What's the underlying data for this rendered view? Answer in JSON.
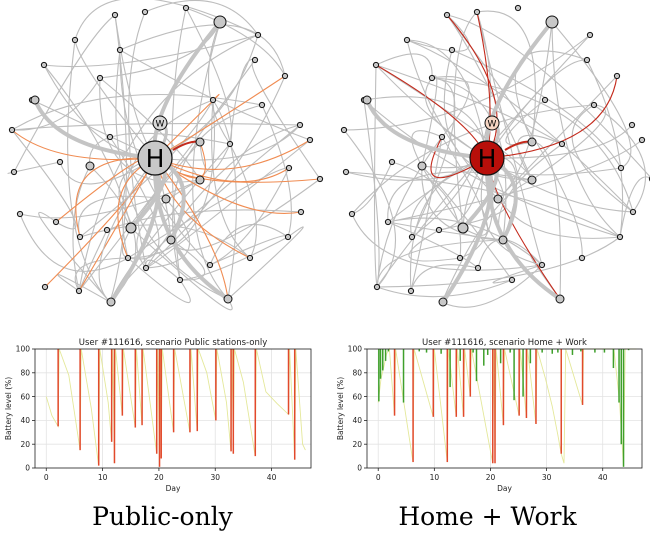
{
  "figure": {
    "left_caption": "Public-only",
    "right_caption": "Home + Work"
  },
  "networks": [
    {
      "name": "left-network",
      "home_label": "H",
      "work_label": "W",
      "home_fill": "#c8c8c8"
    },
    {
      "name": "right-network",
      "home_label": "H",
      "work_label": "W",
      "home_fill": "#b80f0a"
    }
  ],
  "colors": {
    "edge_gray": "#bdbdbd",
    "edge_orange": "#f08c52",
    "edge_red": "#c42a1c",
    "charge_red": "#e2492c",
    "charge_green": "#3fa02b",
    "soc_yellow": "#e4e89a",
    "node_fill": "#c8c8c8"
  },
  "chart_data": [
    {
      "type": "bar",
      "title": "User #111616, scenario Public stations-only",
      "xlabel": "Day",
      "ylabel": "Battery level (%)",
      "xlim": [
        -2,
        47
      ],
      "ylim": [
        0,
        100
      ],
      "xticks": [
        0,
        10,
        20,
        30,
        40
      ],
      "yticks": [
        0,
        20,
        40,
        60,
        80,
        100
      ],
      "grid": true,
      "series": [
        {
          "values": [
            [
              2.1,
              35
            ],
            [
              6,
              15
            ],
            [
              9.3,
              2
            ],
            [
              11.6,
              22
            ],
            [
              12.1,
              4
            ],
            [
              13.5,
              44
            ],
            [
              15.8,
              34
            ],
            [
              17,
              36
            ],
            [
              19.6,
              12
            ],
            [
              20.1,
              1
            ],
            [
              20.4,
              8
            ],
            [
              22.6,
              30
            ],
            [
              25.5,
              30
            ],
            [
              26.8,
              31
            ],
            [
              30.1,
              40
            ],
            [
              32.8,
              14
            ],
            [
              33.2,
              12
            ],
            [
              37.1,
              10
            ],
            [
              43,
              45
            ],
            [
              44.1,
              7
            ]
          ]
        }
      ],
      "soc_trace": [
        [
          0,
          60
        ],
        [
          1,
          44
        ],
        [
          2.1,
          35
        ],
        [
          2.3,
          100
        ],
        [
          4,
          78
        ],
        [
          6,
          15
        ],
        [
          6.2,
          100
        ],
        [
          8,
          50
        ],
        [
          9.3,
          2
        ],
        [
          9.5,
          100
        ],
        [
          11,
          55
        ],
        [
          11.6,
          22
        ],
        [
          11.8,
          100
        ],
        [
          12.1,
          4
        ],
        [
          12.3,
          100
        ],
        [
          13.5,
          44
        ],
        [
          13.7,
          100
        ],
        [
          15.8,
          34
        ],
        [
          16,
          100
        ],
        [
          17,
          36
        ],
        [
          17.2,
          100
        ],
        [
          19.6,
          12
        ],
        [
          19.8,
          100
        ],
        [
          20.1,
          1
        ],
        [
          20.2,
          100
        ],
        [
          20.4,
          8
        ],
        [
          20.6,
          100
        ],
        [
          22.6,
          30
        ],
        [
          22.8,
          100
        ],
        [
          25.5,
          30
        ],
        [
          25.7,
          100
        ],
        [
          26.8,
          31
        ],
        [
          27,
          100
        ],
        [
          28.5,
          80
        ],
        [
          30.1,
          40
        ],
        [
          30.3,
          100
        ],
        [
          32,
          55
        ],
        [
          32.8,
          14
        ],
        [
          33,
          100
        ],
        [
          33.2,
          12
        ],
        [
          33.4,
          100
        ],
        [
          35,
          72
        ],
        [
          37.1,
          10
        ],
        [
          37.3,
          100
        ],
        [
          39,
          64
        ],
        [
          41,
          54
        ],
        [
          43,
          45
        ],
        [
          43.2,
          100
        ],
        [
          44.1,
          7
        ],
        [
          44.3,
          100
        ],
        [
          45.5,
          20
        ],
        [
          46,
          15
        ]
      ]
    },
    {
      "type": "bar",
      "title": "User #111616, scenario Home + Work",
      "xlabel": "Day",
      "ylabel": "Battery level (%)",
      "xlim": [
        -2,
        47
      ],
      "ylim": [
        0,
        100
      ],
      "xticks": [
        0,
        10,
        20,
        30,
        40
      ],
      "yticks": [
        0,
        20,
        40,
        60,
        80,
        100
      ],
      "grid": true,
      "series": [
        {
          "values": [
            [
              2.9,
              44
            ],
            [
              6.2,
              5
            ],
            [
              9.8,
              43
            ],
            [
              12.3,
              5
            ],
            [
              13.9,
              43
            ],
            [
              15.2,
              43
            ],
            [
              16.4,
              60
            ],
            [
              20.4,
              4
            ],
            [
              20.8,
              4
            ],
            [
              22.3,
              36
            ],
            [
              25.1,
              44
            ],
            [
              26.4,
              42
            ],
            [
              28.1,
              37
            ],
            [
              32.6,
              12
            ],
            [
              36.4,
              53
            ]
          ]
        },
        {
          "values": [
            [
              0.1,
              56
            ],
            [
              0.4,
              75
            ],
            [
              0.8,
              82
            ],
            [
              1.3,
              90
            ],
            [
              1.8,
              98
            ],
            [
              4.5,
              55
            ],
            [
              7.3,
              98
            ],
            [
              8.6,
              97
            ],
            [
              11.2,
              96
            ],
            [
              12.8,
              68
            ],
            [
              14.6,
              90
            ],
            [
              16.9,
              97
            ],
            [
              17.5,
              73
            ],
            [
              18.8,
              86
            ],
            [
              19.5,
              95
            ],
            [
              21.8,
              88
            ],
            [
              23.5,
              97
            ],
            [
              24.2,
              57
            ],
            [
              25.8,
              60
            ],
            [
              27.1,
              88
            ],
            [
              29.2,
              97
            ],
            [
              31,
              96
            ],
            [
              32,
              97
            ],
            [
              34.6,
              95
            ],
            [
              36.1,
              98
            ],
            [
              38.6,
              97
            ],
            [
              40.3,
              97
            ],
            [
              41.9,
              84
            ],
            [
              42.9,
              55
            ],
            [
              43.3,
              20
            ],
            [
              43.7,
              1
            ],
            [
              44.6,
              99
            ]
          ]
        }
      ],
      "soc_trace": [
        [
          0,
          55
        ],
        [
          0.5,
          75
        ],
        [
          1,
          85
        ],
        [
          1.5,
          96
        ],
        [
          2,
          100
        ],
        [
          2.9,
          44
        ],
        [
          3.1,
          100
        ],
        [
          6.2,
          5
        ],
        [
          6.4,
          100
        ],
        [
          9.8,
          43
        ],
        [
          10,
          100
        ],
        [
          12.3,
          5
        ],
        [
          12.5,
          100
        ],
        [
          13.9,
          43
        ],
        [
          14.1,
          100
        ],
        [
          15.2,
          43
        ],
        [
          15.4,
          100
        ],
        [
          16.4,
          60
        ],
        [
          16.6,
          100
        ],
        [
          20.4,
          4
        ],
        [
          20.6,
          100
        ],
        [
          20.8,
          4
        ],
        [
          21,
          100
        ],
        [
          22.3,
          36
        ],
        [
          22.5,
          100
        ],
        [
          25.1,
          44
        ],
        [
          25.3,
          100
        ],
        [
          26.4,
          42
        ],
        [
          26.6,
          100
        ],
        [
          28.1,
          37
        ],
        [
          28.3,
          100
        ],
        [
          29.8,
          75
        ],
        [
          31,
          52
        ],
        [
          32,
          28
        ],
        [
          32.6,
          12
        ],
        [
          33.1,
          4
        ],
        [
          33.4,
          100
        ],
        [
          36.4,
          53
        ],
        [
          36.6,
          100
        ],
        [
          42,
          100
        ],
        [
          43,
          55
        ],
        [
          43.7,
          1
        ],
        [
          44,
          100
        ],
        [
          46,
          100
        ]
      ]
    }
  ]
}
